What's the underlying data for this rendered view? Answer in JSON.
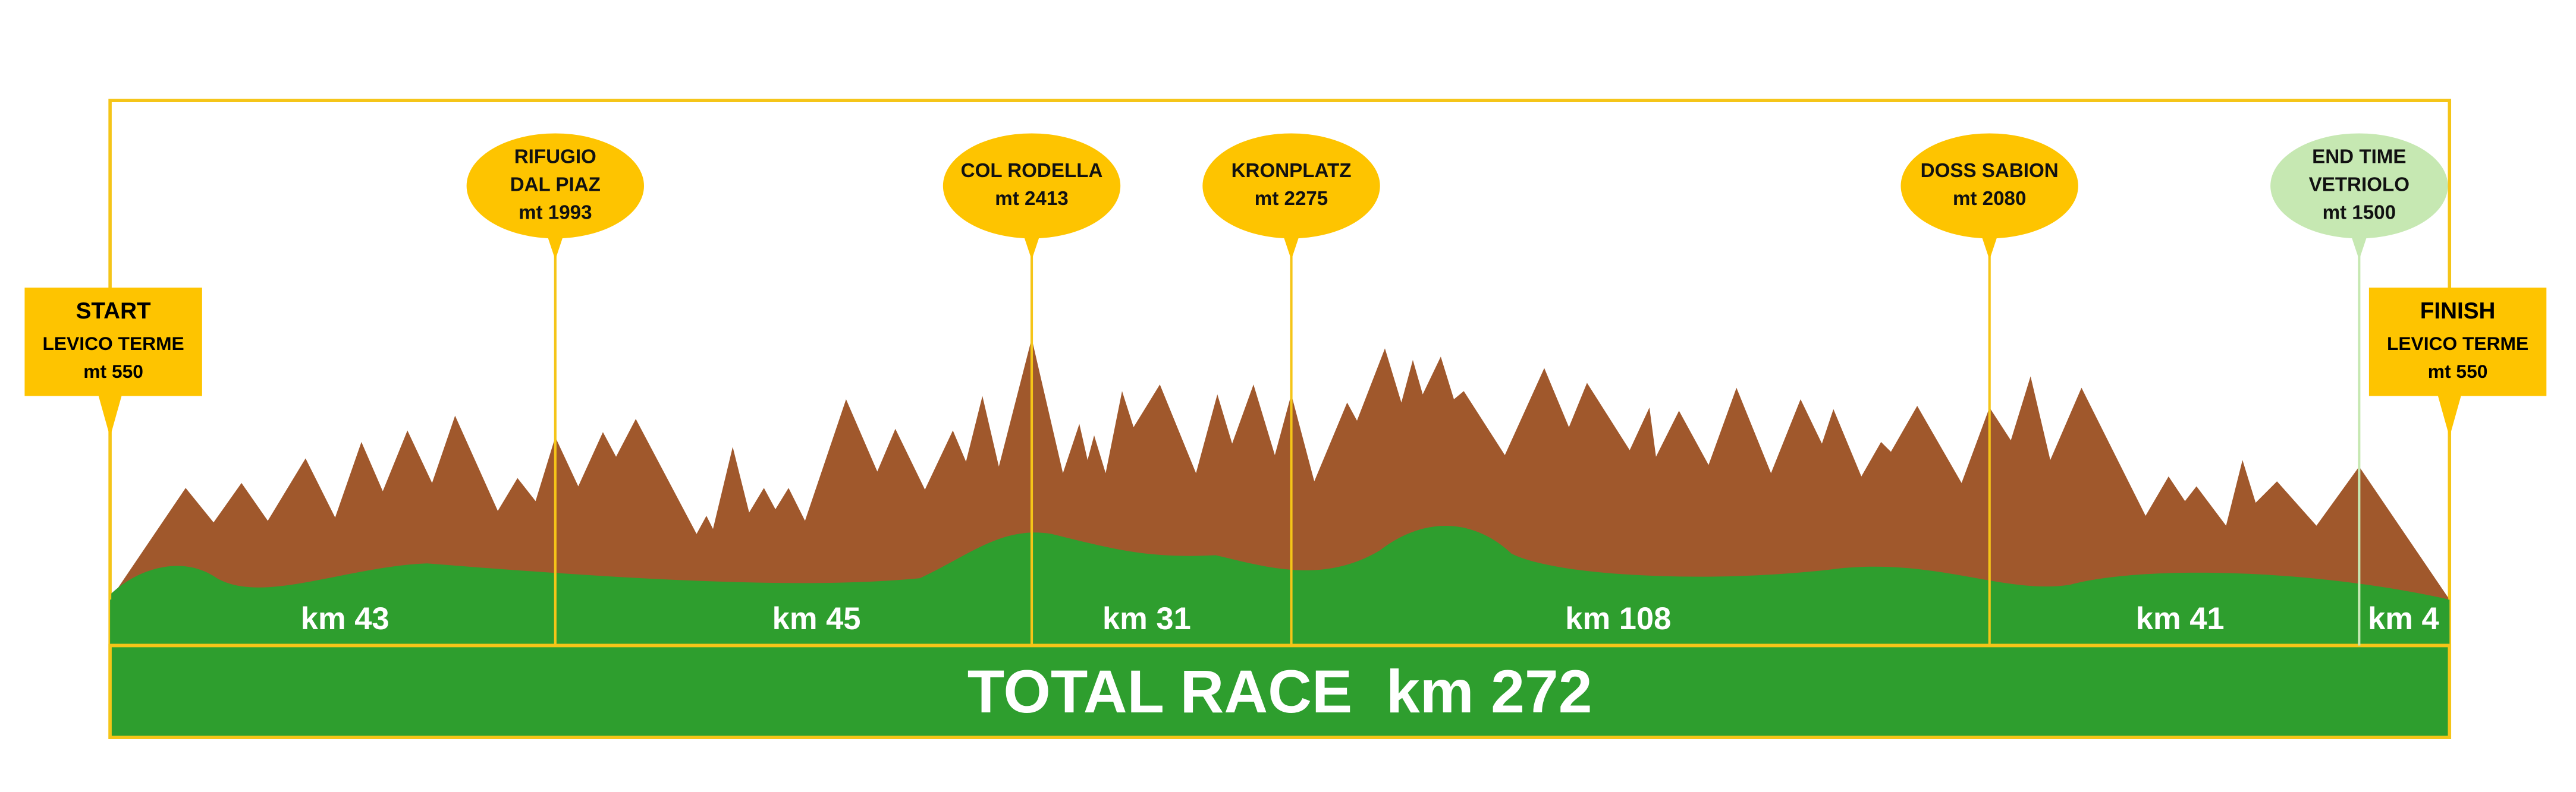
{
  "start": {
    "title": "START",
    "lines": [
      "LEVICO TERME",
      "mt 550"
    ]
  },
  "finish": {
    "title": "FINISH",
    "lines": [
      "LEVICO TERME",
      "mt 550"
    ]
  },
  "checkpoints": [
    {
      "lines": [
        "RIFUGIO",
        "DAL PIAZ",
        "mt 1993"
      ]
    },
    {
      "lines": [
        "COL RODELLA",
        "mt 2413"
      ]
    },
    {
      "lines": [
        "KRONPLATZ",
        "mt 2275"
      ]
    },
    {
      "lines": [
        "DOSS SABION",
        "mt 2080"
      ]
    },
    {
      "lines": [
        "END TIME",
        "VETRIOLO",
        "mt 1500"
      ]
    }
  ],
  "segments": [
    "km 43",
    "km 45",
    "km 31",
    "km 108",
    "km 41",
    "km 4"
  ],
  "total": "TOTAL RACE  km 272"
}
